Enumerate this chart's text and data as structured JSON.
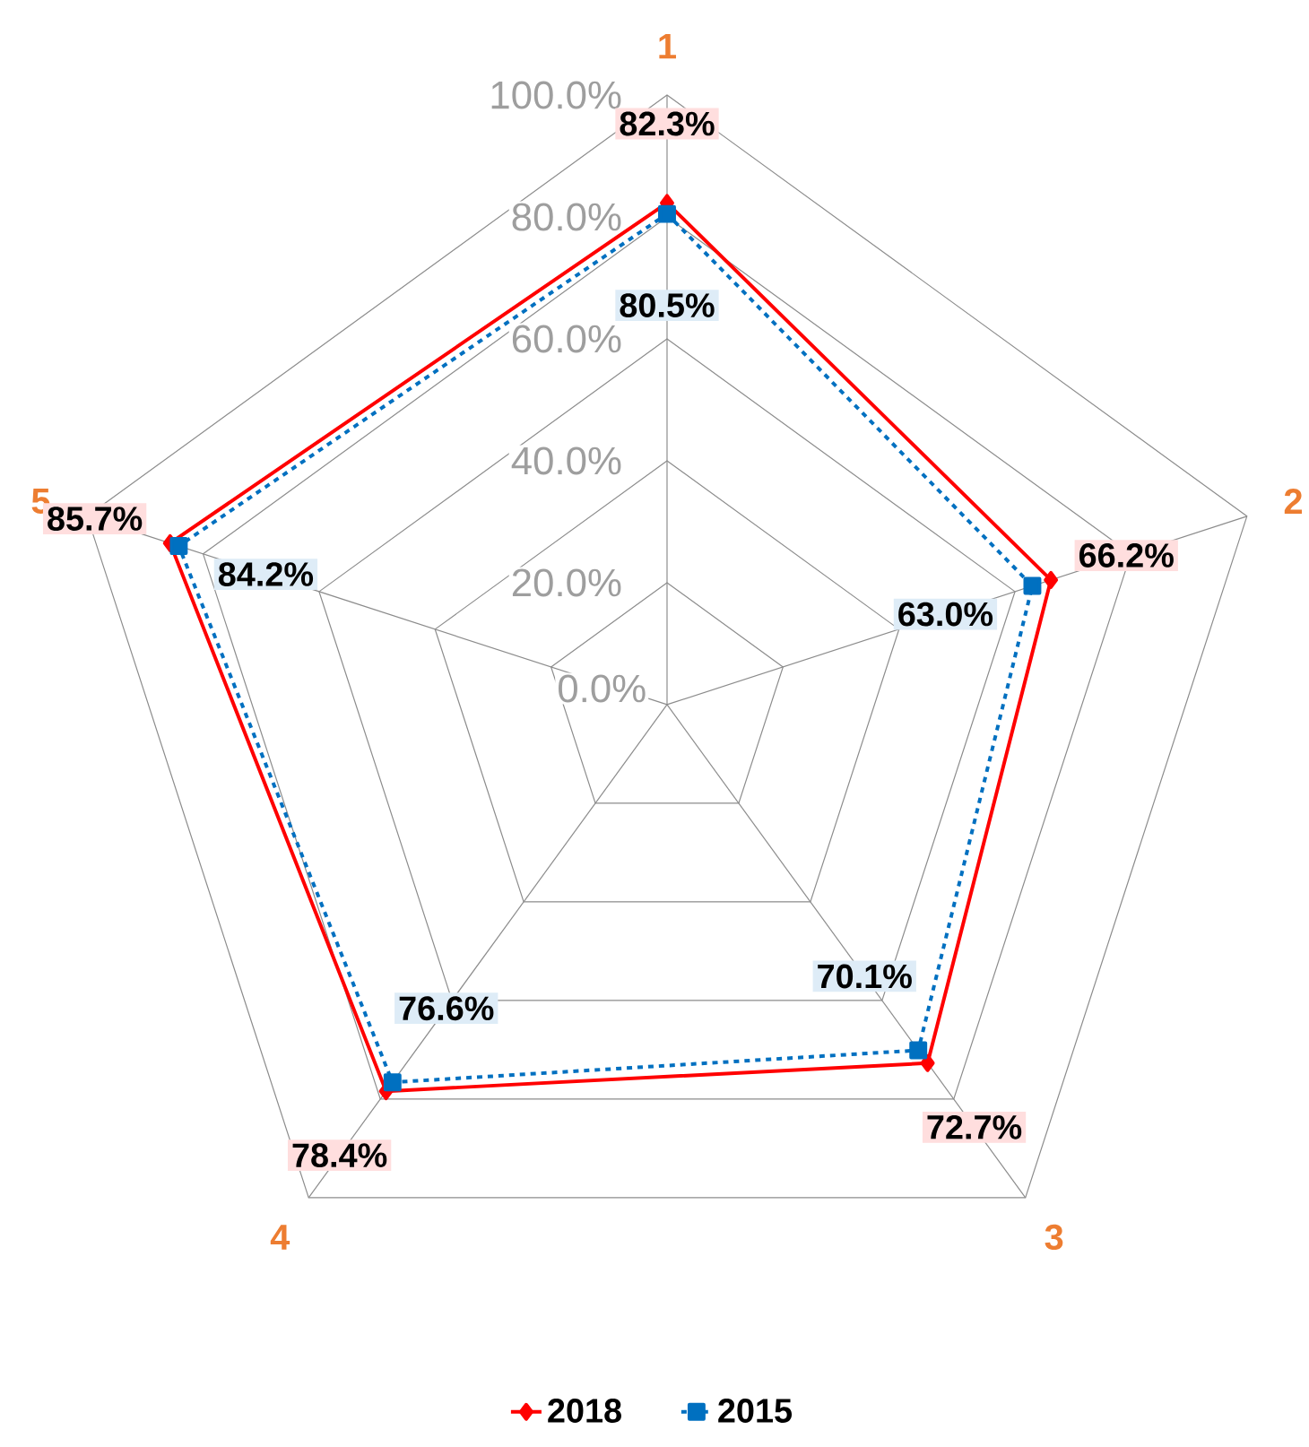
{
  "chart_data": {
    "type": "radar",
    "categories": [
      "1",
      "2",
      "3",
      "4",
      "5"
    ],
    "ylim": [
      0,
      100
    ],
    "yticks": [
      {
        "value": 0,
        "label": "0.0%"
      },
      {
        "value": 20,
        "label": "20.0%"
      },
      {
        "value": 40,
        "label": "40.0%"
      },
      {
        "value": 60,
        "label": "60.0%"
      },
      {
        "value": 80,
        "label": "80.0%"
      },
      {
        "value": 100,
        "label": "100.0%"
      }
    ],
    "grid": true,
    "legend": "bottom",
    "series": [
      {
        "name": "2018",
        "color": "#ff0000",
        "marker": "diamond",
        "line_style": "solid",
        "values": [
          82.3,
          66.2,
          72.7,
          78.4,
          85.7
        ],
        "value_labels": [
          "82.3%",
          "66.2%",
          "72.7%",
          "78.4%",
          "85.7%"
        ]
      },
      {
        "name": "2015",
        "color": "#0070c0",
        "marker": "square",
        "line_style": "dashed",
        "values": [
          80.5,
          63.0,
          70.1,
          76.6,
          84.2
        ],
        "value_labels": [
          "80.5%",
          "63.0%",
          "70.1%",
          "76.6%",
          "84.2%"
        ]
      }
    ]
  }
}
